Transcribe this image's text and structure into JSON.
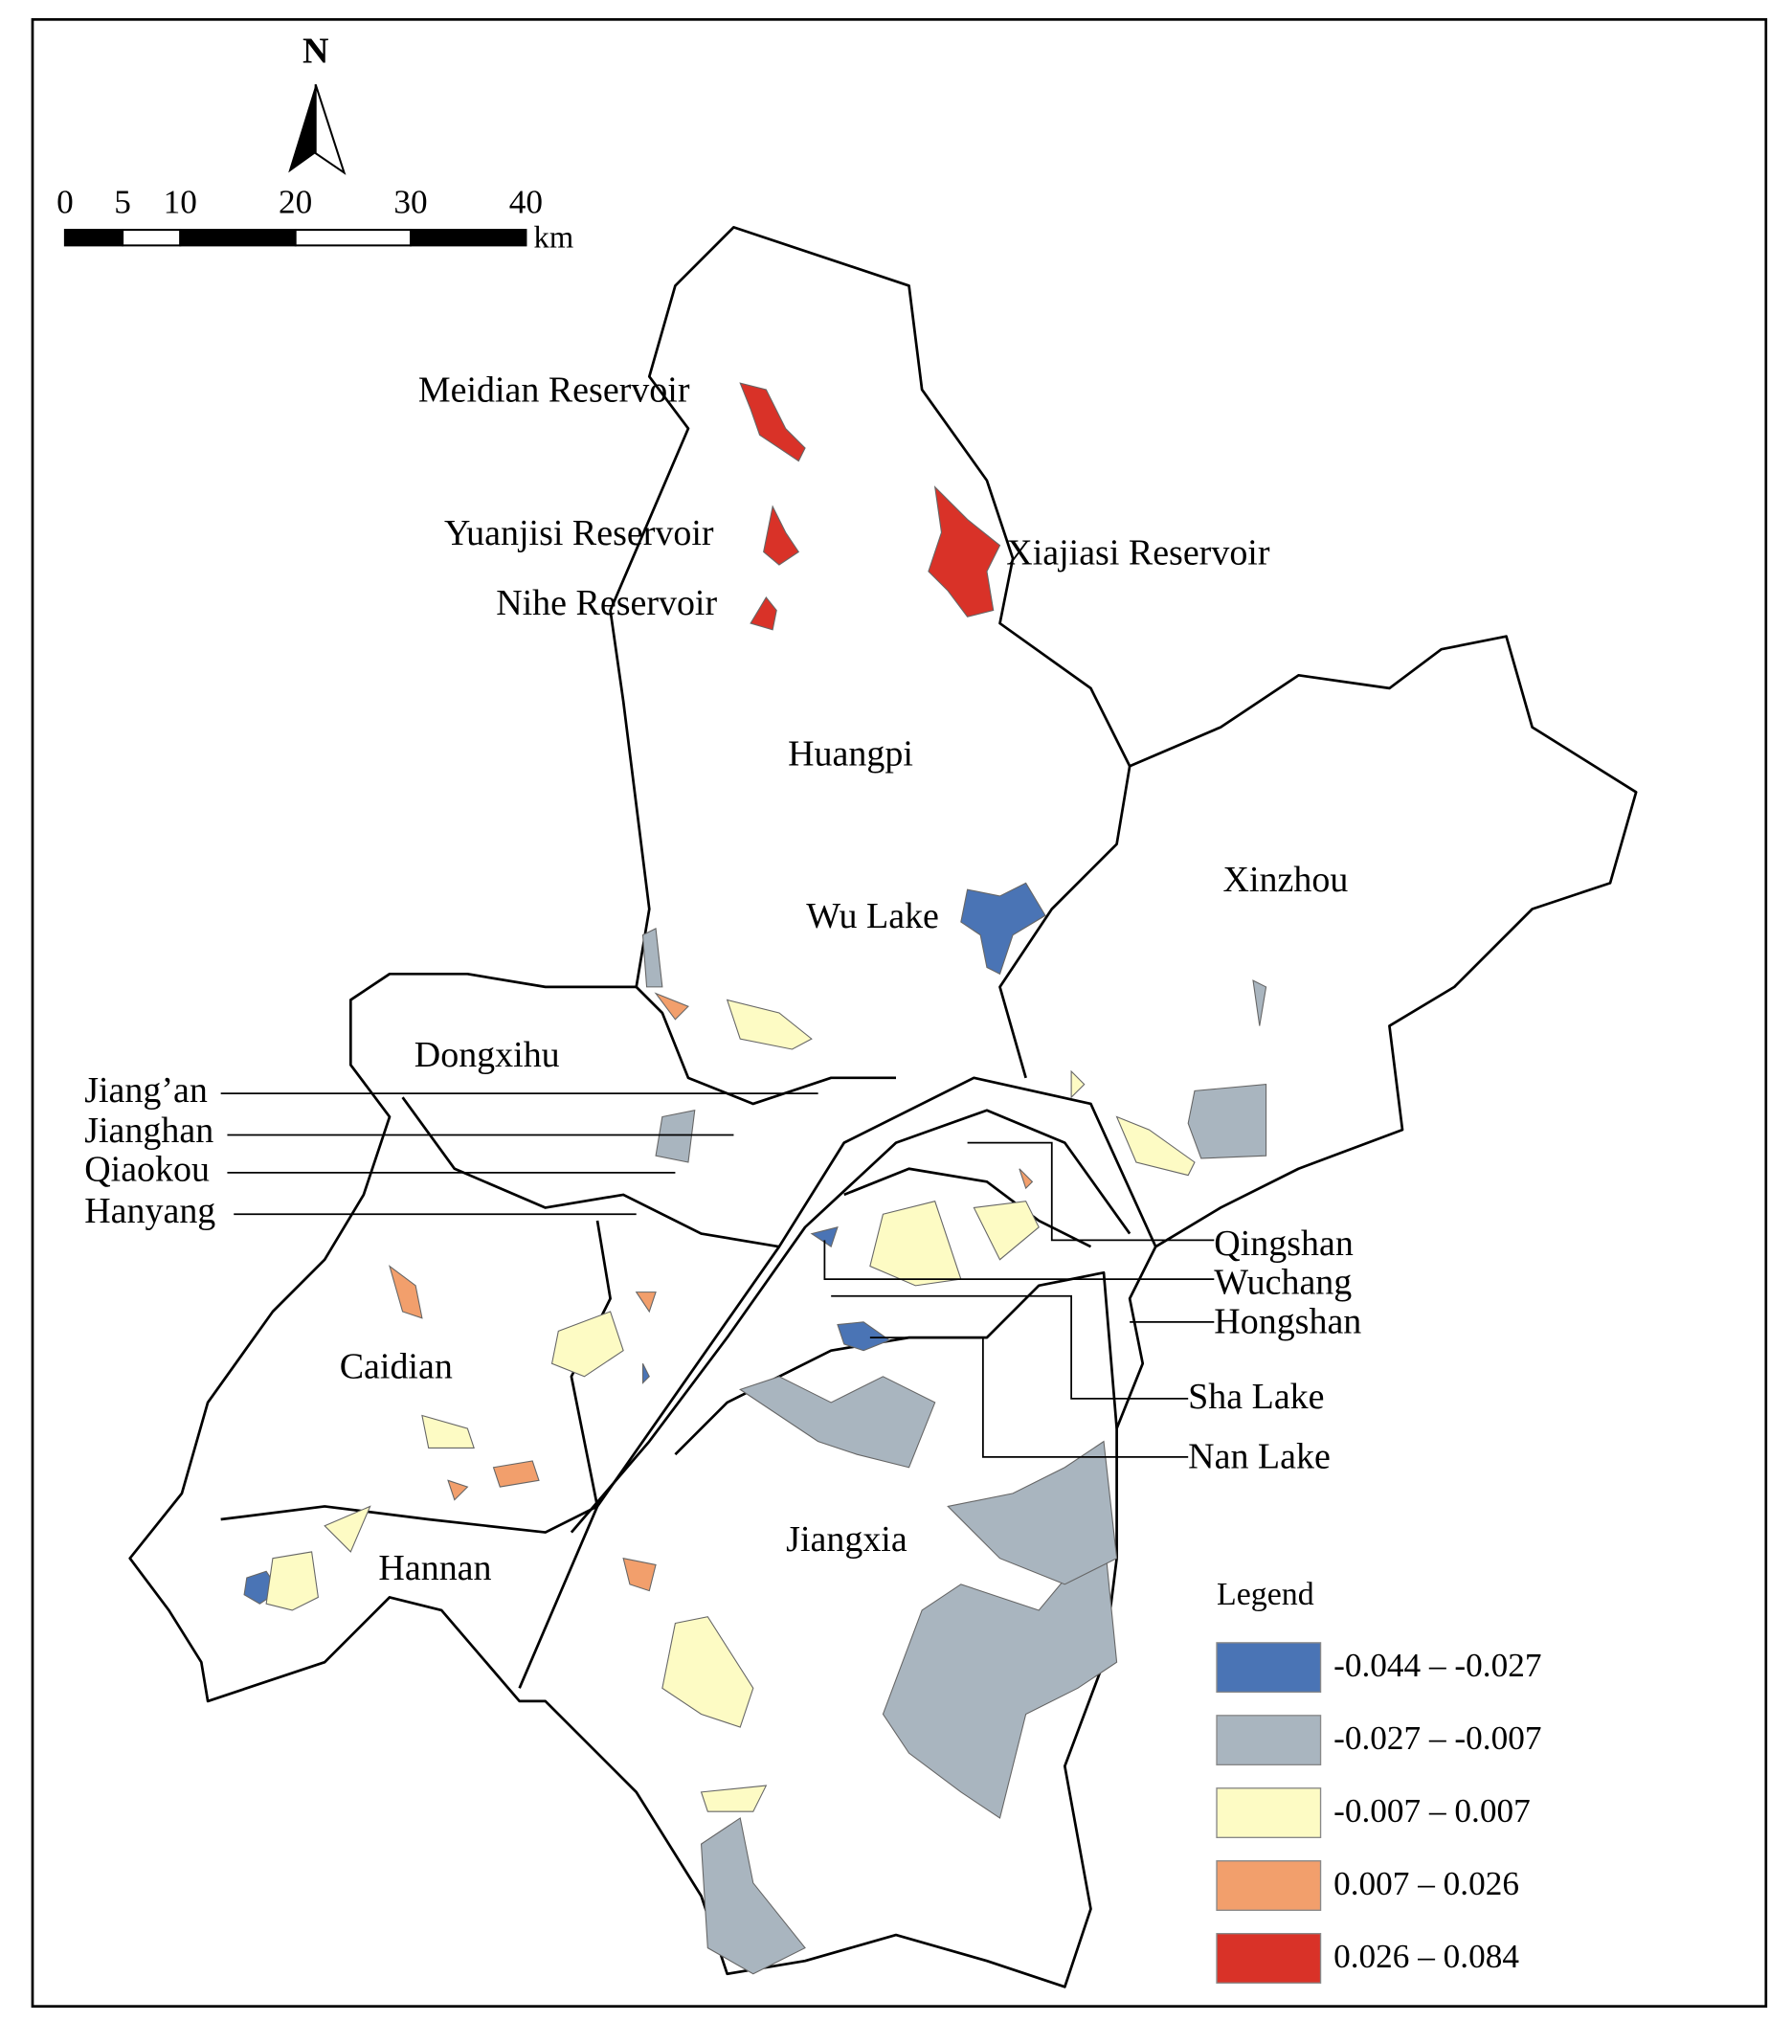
{
  "north": "N",
  "scale_bar": {
    "ticks": [
      0,
      5,
      10,
      20,
      30,
      40
    ],
    "unit": "km"
  },
  "districts": [
    "Huangpi",
    "Xinzhou",
    "Dongxihu",
    "Caidian",
    "Hannan",
    "Jiangxia",
    "Jiang’an",
    "Jianghan",
    "Qiaokou",
    "Hanyang",
    "Qingshan",
    "Wuchang",
    "Hongshan"
  ],
  "water_bodies": [
    "Meidian Reservoir",
    "Yuanjisi Reservoir",
    "Nihe Reservoir",
    "Xiajiasi Reservoir",
    "Wu Lake",
    "Sha Lake",
    "Nan Lake"
  ],
  "legend": {
    "title": "Legend",
    "items": [
      {
        "label": "-0.044 – -0.027",
        "color": "#4a74b5"
      },
      {
        "label": "-0.027 – -0.007",
        "color": "#a9b5bf"
      },
      {
        "label": "-0.007 – 0.007",
        "color": "#fdfbc4"
      },
      {
        "label": "0.007 – 0.026",
        "color": "#f29f6c"
      },
      {
        "label": "0.026 – 0.084",
        "color": "#d93228"
      }
    ]
  }
}
